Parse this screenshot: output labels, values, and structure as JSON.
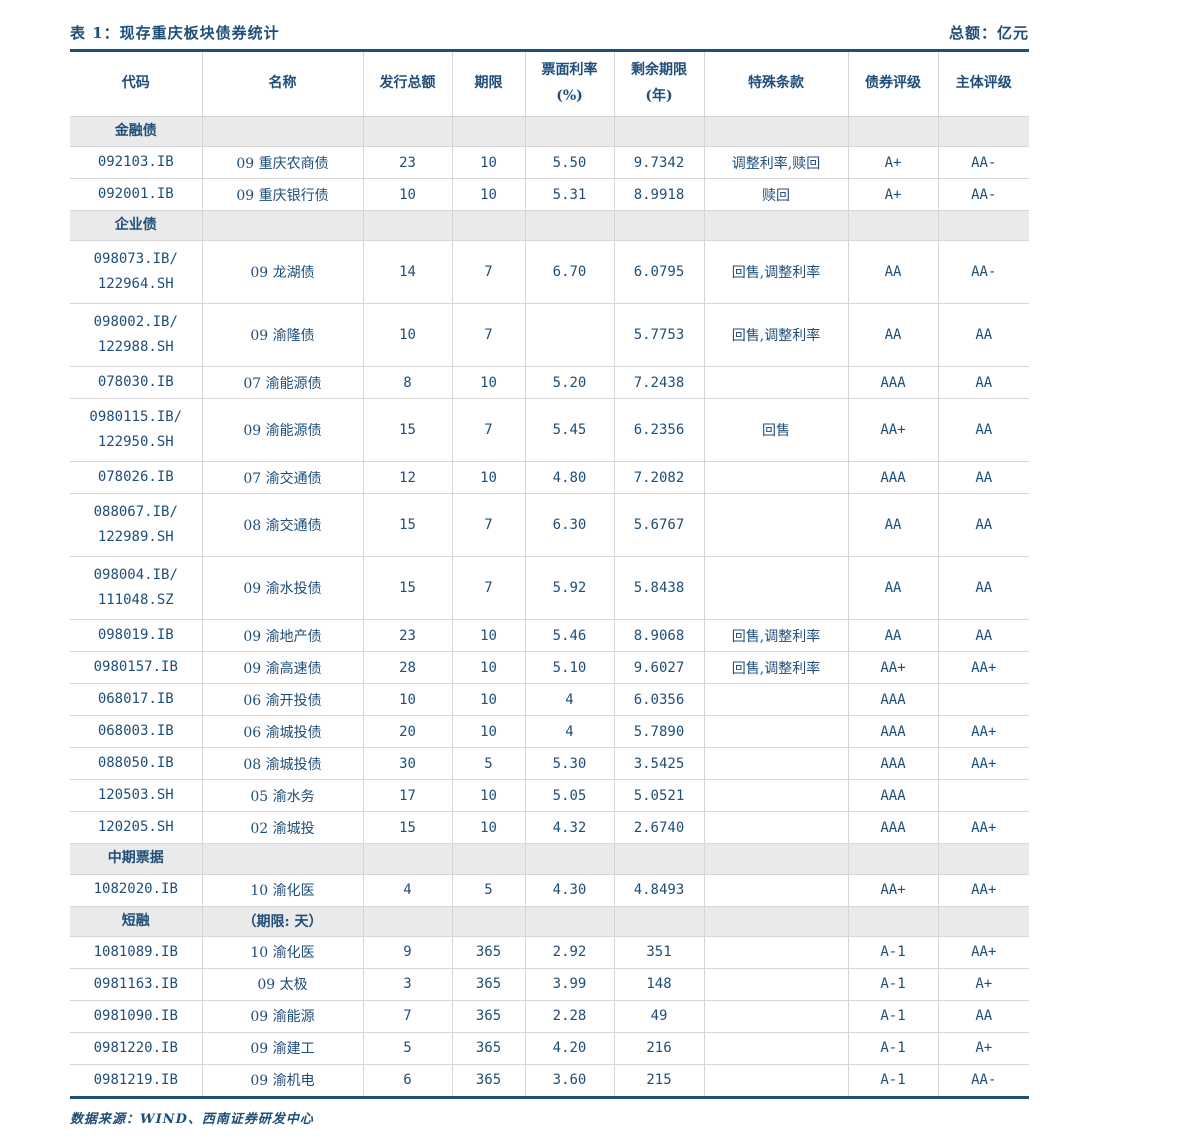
{
  "page": {
    "title": "表 1：现存重庆板块债券统计",
    "unit_label": "总额：亿元",
    "source": "数据来源：WIND、西南证券研发中心"
  },
  "colors": {
    "text_navy": "#1F4E79",
    "rule_navy": "#1F4E79",
    "grid_gray": "#D6D6D6",
    "section_band_gray": "#EAEAEA",
    "background": "#FFFFFF"
  },
  "table": {
    "columns": [
      "代码",
      "名称",
      "发行总额",
      "期限",
      "票面利率\n(%)",
      "剩余期限\n(年)",
      "特殊条款",
      "债券评级",
      "主体评级"
    ],
    "column_keys": [
      "code",
      "name",
      "amount",
      "term",
      "coupon",
      "remaining",
      "clauses",
      "bond-rating",
      "issuer-rating"
    ],
    "rows": [
      {
        "type": "section",
        "cells": [
          "金融债",
          "",
          "",
          "",
          "",
          "",
          "",
          "",
          ""
        ]
      },
      {
        "type": "bond",
        "cells": [
          "092103.IB",
          "09 重庆农商债",
          "23",
          "10",
          "5.50",
          "9.7342",
          "调整利率,赎回",
          "A+",
          "AA-"
        ]
      },
      {
        "type": "bond",
        "cells": [
          "092001.IB",
          "09 重庆银行债",
          "10",
          "10",
          "5.31",
          "8.9918",
          "赎回",
          "A+",
          "AA-"
        ]
      },
      {
        "type": "section",
        "cells": [
          "企业债",
          "",
          "",
          "",
          "",
          "",
          "",
          "",
          ""
        ]
      },
      {
        "type": "bond",
        "cells": [
          "098073.IB/\n122964.SH",
          "09 龙湖债",
          "14",
          "7",
          "6.70",
          "6.0795",
          "回售,调整利率",
          "AA",
          "AA-"
        ]
      },
      {
        "type": "bond",
        "cells": [
          "098002.IB/\n122988.SH",
          "09 渝隆债",
          "10",
          "7",
          "",
          "5.7753",
          "回售,调整利率",
          "AA",
          "AA"
        ]
      },
      {
        "type": "bond",
        "cells": [
          "078030.IB",
          "07 渝能源债",
          "8",
          "10",
          "5.20",
          "7.2438",
          "",
          "AAA",
          "AA"
        ]
      },
      {
        "type": "bond",
        "cells": [
          "0980115.IB/\n122950.SH",
          "09 渝能源债",
          "15",
          "7",
          "5.45",
          "6.2356",
          "回售",
          "AA+",
          "AA"
        ]
      },
      {
        "type": "bond",
        "cells": [
          "078026.IB",
          "07 渝交通债",
          "12",
          "10",
          "4.80",
          "7.2082",
          "",
          "AAA",
          "AA"
        ]
      },
      {
        "type": "bond",
        "cells": [
          "088067.IB/\n122989.SH",
          "08 渝交通债",
          "15",
          "7",
          "6.30",
          "5.6767",
          "",
          "AA",
          "AA"
        ]
      },
      {
        "type": "bond",
        "cells": [
          "098004.IB/\n111048.SZ",
          "09 渝水投债",
          "15",
          "7",
          "5.92",
          "5.8438",
          "",
          "AA",
          "AA"
        ]
      },
      {
        "type": "bond",
        "cells": [
          "098019.IB",
          "09 渝地产债",
          "23",
          "10",
          "5.46",
          "8.9068",
          "回售,调整利率",
          "AA",
          "AA"
        ]
      },
      {
        "type": "bond",
        "cells": [
          "0980157.IB",
          "09 渝高速债",
          "28",
          "10",
          "5.10",
          "9.6027",
          "回售,调整利率",
          "AA+",
          "AA+"
        ]
      },
      {
        "type": "bond",
        "cells": [
          "068017.IB",
          "06 渝开投债",
          "10",
          "10",
          "4",
          "6.0356",
          "",
          "AAA",
          ""
        ]
      },
      {
        "type": "bond",
        "cells": [
          "068003.IB",
          "06 渝城投债",
          "20",
          "10",
          "4",
          "5.7890",
          "",
          "AAA",
          "AA+"
        ]
      },
      {
        "type": "bond",
        "cells": [
          "088050.IB",
          "08 渝城投债",
          "30",
          "5",
          "5.30",
          "3.5425",
          "",
          "AAA",
          "AA+"
        ]
      },
      {
        "type": "bond",
        "cells": [
          "120503.SH",
          "05 渝水务",
          "17",
          "10",
          "5.05",
          "5.0521",
          "",
          "AAA",
          ""
        ]
      },
      {
        "type": "bond",
        "cells": [
          "120205.SH",
          "02 渝城投",
          "15",
          "10",
          "4.32",
          "2.6740",
          "",
          "AAA",
          "AA+"
        ]
      },
      {
        "type": "section",
        "cells": [
          "中期票据",
          "",
          "",
          "",
          "",
          "",
          "",
          "",
          ""
        ]
      },
      {
        "type": "bond",
        "cells": [
          "1082020.IB",
          "10 渝化医",
          "4",
          "5",
          "4.30",
          "4.8493",
          "",
          "AA+",
          "AA+"
        ]
      },
      {
        "type": "section",
        "cells": [
          "短融",
          "（期限: 天）",
          "",
          "",
          "",
          "",
          "",
          "",
          ""
        ]
      },
      {
        "type": "bond",
        "cells": [
          "1081089.IB",
          "10 渝化医",
          "9",
          "365",
          "2.92",
          "351",
          "",
          "A-1",
          "AA+"
        ]
      },
      {
        "type": "bond",
        "cells": [
          "0981163.IB",
          "09 太极",
          "3",
          "365",
          "3.99",
          "148",
          "",
          "A-1",
          "A+"
        ]
      },
      {
        "type": "bond",
        "cells": [
          "0981090.IB",
          "09 渝能源",
          "7",
          "365",
          "2.28",
          "49",
          "",
          "A-1",
          "AA"
        ]
      },
      {
        "type": "bond",
        "cells": [
          "0981220.IB",
          "09 渝建工",
          "5",
          "365",
          "4.20",
          "216",
          "",
          "A-1",
          "A+"
        ]
      },
      {
        "type": "bond",
        "cells": [
          "0981219.IB",
          "09 渝机电",
          "6",
          "365",
          "3.60",
          "215",
          "",
          "A-1",
          "AA-"
        ]
      }
    ]
  }
}
